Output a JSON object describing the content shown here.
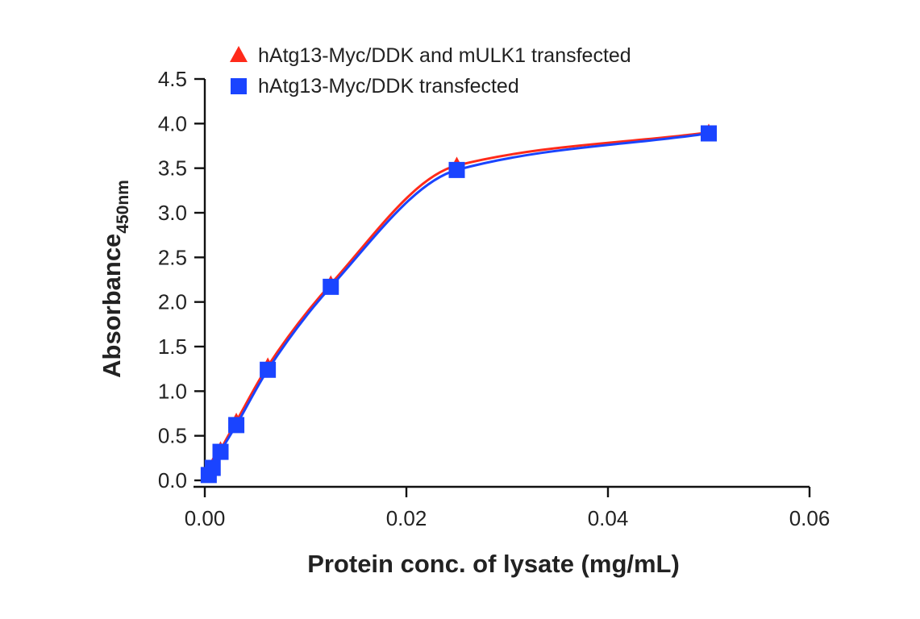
{
  "chart_data": {
    "type": "line",
    "xlabel": "Protein conc. of lysate (mg/mL)",
    "ylabel": {
      "main": "Absorbance",
      "subscript": "450nm"
    },
    "xlim": [
      0,
      0.06
    ],
    "ylim": [
      0,
      4.5
    ],
    "x_ticks": [
      0,
      0.02,
      0.04,
      0.06
    ],
    "x_tick_labels": [
      "0.00",
      "0.02",
      "0.04",
      "0.06"
    ],
    "y_ticks": [
      0,
      0.5,
      1,
      1.5,
      2,
      2.5,
      3,
      3.5,
      4,
      4.5
    ],
    "y_tick_labels": [
      "0.0",
      "0.5",
      "1.0",
      "1.5",
      "2.0",
      "2.5",
      "3.0",
      "3.5",
      "4.0",
      "4.5"
    ],
    "grid": false,
    "legend_position": "top-left",
    "series": [
      {
        "name": "hAtg13-Myc/DDK and mULK1 transfected",
        "marker": "triangle",
        "color": "#ff2a1a",
        "x": [
          0.00039,
          0.00078,
          0.00156,
          0.003125,
          0.00625,
          0.0125,
          0.025,
          0.05
        ],
        "y": [
          0.07,
          0.16,
          0.34,
          0.66,
          1.28,
          2.2,
          3.53,
          3.9
        ]
      },
      {
        "name": "hAtg13-Myc/DDK transfected",
        "marker": "square",
        "color": "#1a44ff",
        "x": [
          0.00039,
          0.00078,
          0.00156,
          0.003125,
          0.00625,
          0.0125,
          0.025,
          0.05
        ],
        "y": [
          0.06,
          0.14,
          0.32,
          0.62,
          1.24,
          2.17,
          3.48,
          3.89
        ]
      }
    ]
  }
}
